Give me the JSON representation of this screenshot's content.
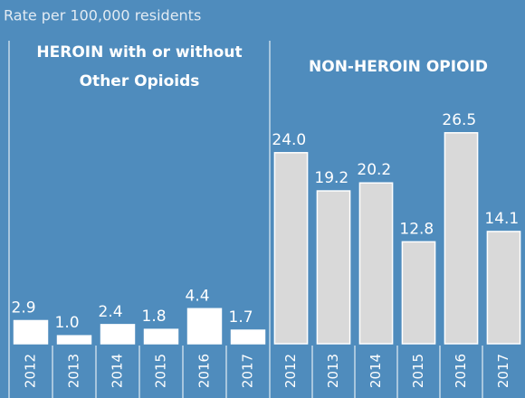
{
  "caption": "Rate per 100,000 residents",
  "chart_data": [
    {
      "type": "bar",
      "title": "HEROIN with or without Other Opioids",
      "categories": [
        "2012",
        "2013",
        "2014",
        "2015",
        "2016",
        "2017"
      ],
      "values": [
        2.9,
        1.0,
        2.4,
        1.8,
        4.4,
        1.7
      ],
      "value_labels": [
        "2.9",
        "1.0",
        "2.4",
        "1.8",
        "4.4",
        "1.7"
      ],
      "color": "#ffffff"
    },
    {
      "type": "bar",
      "title": "NON-HEROIN OPIOID",
      "categories": [
        "2012",
        "2013",
        "2014",
        "2015",
        "2016",
        "2017"
      ],
      "values": [
        24.0,
        19.2,
        20.2,
        12.8,
        26.5,
        14.1
      ],
      "value_labels": [
        "24.0",
        "19.2",
        "20.2",
        "12.8",
        "26.5",
        "14.1"
      ],
      "color": "#d9d9d9"
    }
  ]
}
